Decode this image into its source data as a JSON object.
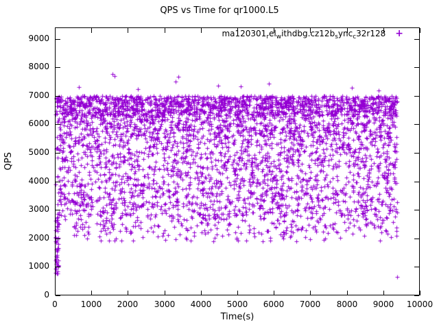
{
  "title": "QPS vs Time for qr1000.L5",
  "legend": {
    "full_name": "ma120301_rel_withdbg.cz12b_sync_c32r128",
    "segments": [
      {
        "text": "ma120301",
        "sub": false
      },
      {
        "text": "r",
        "sub": true
      },
      {
        "text": "el",
        "sub": false
      },
      {
        "text": "w",
        "sub": true
      },
      {
        "text": "ithdbg.cz12b",
        "sub": false
      },
      {
        "text": "s",
        "sub": true
      },
      {
        "text": "ync",
        "sub": false
      },
      {
        "text": "c",
        "sub": true
      },
      {
        "text": "32r128",
        "sub": false
      }
    ],
    "marker": "+",
    "marker_color": "#9400D3"
  },
  "axes": {
    "x": {
      "label": "Time(s)",
      "range": [
        0,
        10000
      ],
      "ticks": [
        0,
        1000,
        2000,
        3000,
        4000,
        5000,
        6000,
        7000,
        8000,
        9000,
        10000
      ]
    },
    "y": {
      "label": "QPS",
      "range": [
        0,
        9400
      ],
      "ticks": [
        0,
        1000,
        2000,
        3000,
        4000,
        5000,
        6000,
        7000,
        8000,
        9000
      ]
    }
  },
  "chart_data": {
    "type": "scatter",
    "title": "QPS vs Time for qr1000.L5",
    "xlabel": "Time(s)",
    "ylabel": "QPS",
    "xlim": [
      0,
      10000
    ],
    "ylim": [
      0,
      9400
    ],
    "grid": false,
    "legend_position": "top-right-inside",
    "series": [
      {
        "name": "ma120301_rel_withdbg.cz12b_sync_c32r128",
        "marker": "+",
        "color": "#9400D3",
        "description": "Dense uniform scatter of QPS samples between ~2000 and ~7000 QPS across 0-9400 s, heaviest near 6300-7000, hard ceiling near 7000, sparse tail below 2800, startup ramp column near x=0 from ~650 to ~2750 QPS",
        "distribution": {
          "seed": 42,
          "n": 4200,
          "x_range": [
            15,
            9380
          ],
          "bands": [
            {
              "ymin": 6300,
              "ymax": 7000,
              "weight": 0.34
            },
            {
              "ymin": 5500,
              "ymax": 6300,
              "weight": 0.18
            },
            {
              "ymin": 4500,
              "ymax": 5500,
              "weight": 0.16
            },
            {
              "ymin": 3500,
              "ymax": 4500,
              "weight": 0.14
            },
            {
              "ymin": 2800,
              "ymax": 3500,
              "weight": 0.11
            },
            {
              "ymin": 2200,
              "ymax": 2800,
              "weight": 0.055
            },
            {
              "ymin": 1900,
              "ymax": 2200,
              "weight": 0.015
            }
          ]
        },
        "startup_ramp": {
          "x_range": [
            15,
            95
          ],
          "y_range": [
            650,
            2750
          ],
          "n": 45
        },
        "outliers": [
          [
            1580,
            7760
          ],
          [
            1640,
            7690
          ],
          [
            3380,
            7670
          ],
          [
            3310,
            7500
          ],
          [
            5860,
            7420
          ],
          [
            5090,
            7330
          ],
          [
            4480,
            7350
          ],
          [
            2270,
            7230
          ],
          [
            8140,
            7280
          ],
          [
            660,
            7310
          ],
          [
            8870,
            7190
          ],
          [
            9385,
            640
          ]
        ]
      }
    ]
  }
}
